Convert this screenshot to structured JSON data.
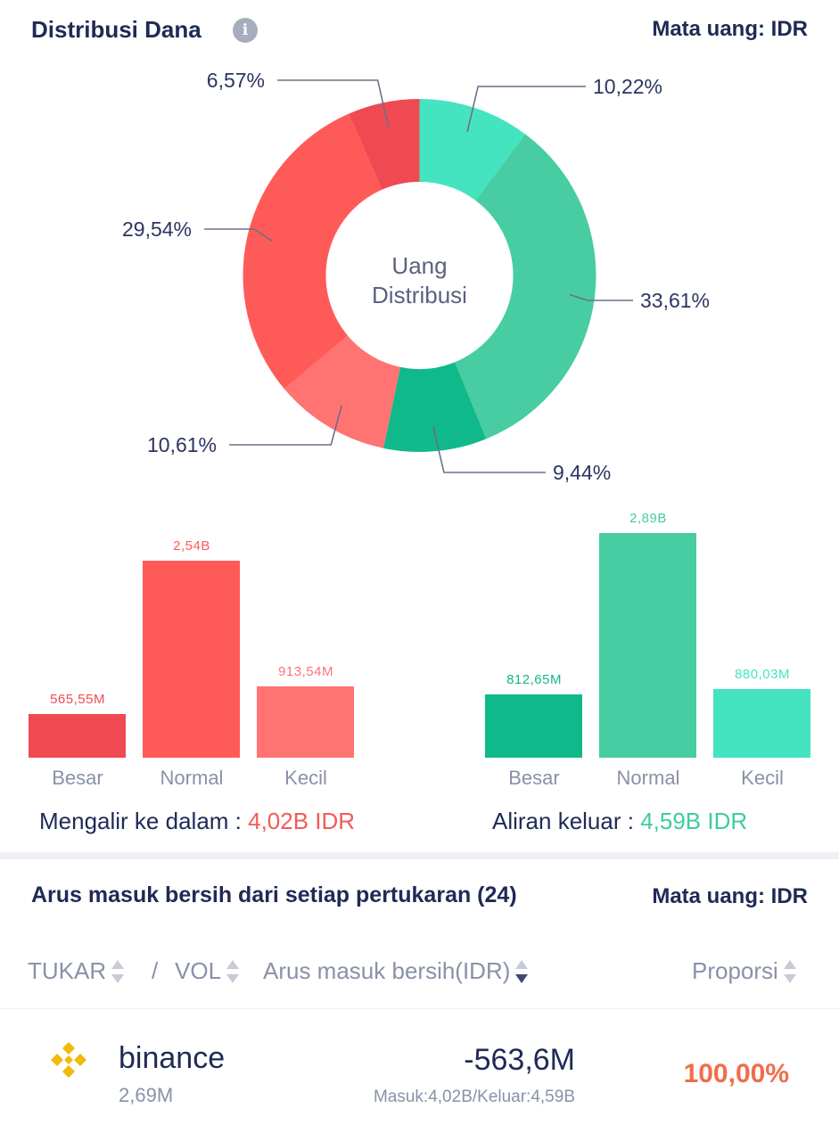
{
  "header": {
    "title": "Distribusi Dana",
    "info_icon": "info-icon",
    "currency": "Mata uang: IDR"
  },
  "colors": {
    "red_large": "#ef4a52",
    "red_normal": "#fe5b58",
    "red_small": "#ff7373",
    "green_large": "#10b98a",
    "green_normal": "#48cca2",
    "green_small": "#45e4c1",
    "red_text": "#f25a57",
    "green_text": "#3fcc9d",
    "orange_text": "#f06d4a"
  },
  "chart_data": [
    {
      "type": "pie",
      "title": "Uang Distribusi",
      "center_label_line1": "Uang",
      "center_label_line2": "Distribusi",
      "slices": [
        {
          "key": "green_small",
          "value": 10.22,
          "label": "10,22%"
        },
        {
          "key": "green_normal",
          "value": 33.61,
          "label": "33,61%"
        },
        {
          "key": "green_large",
          "value": 9.44,
          "label": "9,44%"
        },
        {
          "key": "red_small",
          "value": 10.61,
          "label": "10,61%"
        },
        {
          "key": "red_normal",
          "value": 29.54,
          "label": "29,54%"
        },
        {
          "key": "red_large",
          "value": 6.57,
          "label": "6,57%"
        }
      ]
    },
    {
      "type": "bar",
      "title": "Mengalir ke dalam",
      "categories": [
        "Besar",
        "Normal",
        "Kecil"
      ],
      "values": [
        565.55,
        2540,
        913.54
      ],
      "value_labels": [
        "565,55M",
        "2,54B",
        "913,54M"
      ],
      "unit": "M IDR"
    },
    {
      "type": "bar",
      "title": "Aliran keluar",
      "categories": [
        "Besar",
        "Normal",
        "Kecil"
      ],
      "values": [
        812.65,
        2890,
        880.03
      ],
      "value_labels": [
        "812,65M",
        "2,89B",
        "880,03M"
      ],
      "unit": "M IDR"
    }
  ],
  "flows": {
    "inflow_label": "Mengalir ke dalam : ",
    "inflow_value": "4,02B IDR",
    "outflow_label": "Aliran keluar : ",
    "outflow_value": "4,59B IDR"
  },
  "exchange_section": {
    "title": "Arus masuk bersih dari setiap pertukaran (24)",
    "currency": "Mata uang: IDR",
    "columns": {
      "exchange": "TUKAR",
      "slash": "/",
      "vol": "VOL",
      "net_inflow": "Arus masuk bersih(IDR)",
      "proportion": "Proporsi"
    },
    "rows": [
      {
        "logo": "binance-logo-icon",
        "name": "binance",
        "vol": "2,69M",
        "net": "-563,6M",
        "in_out": "Masuk:4,02B/Keluar:4,59B",
        "proportion": "100,00%"
      }
    ]
  }
}
